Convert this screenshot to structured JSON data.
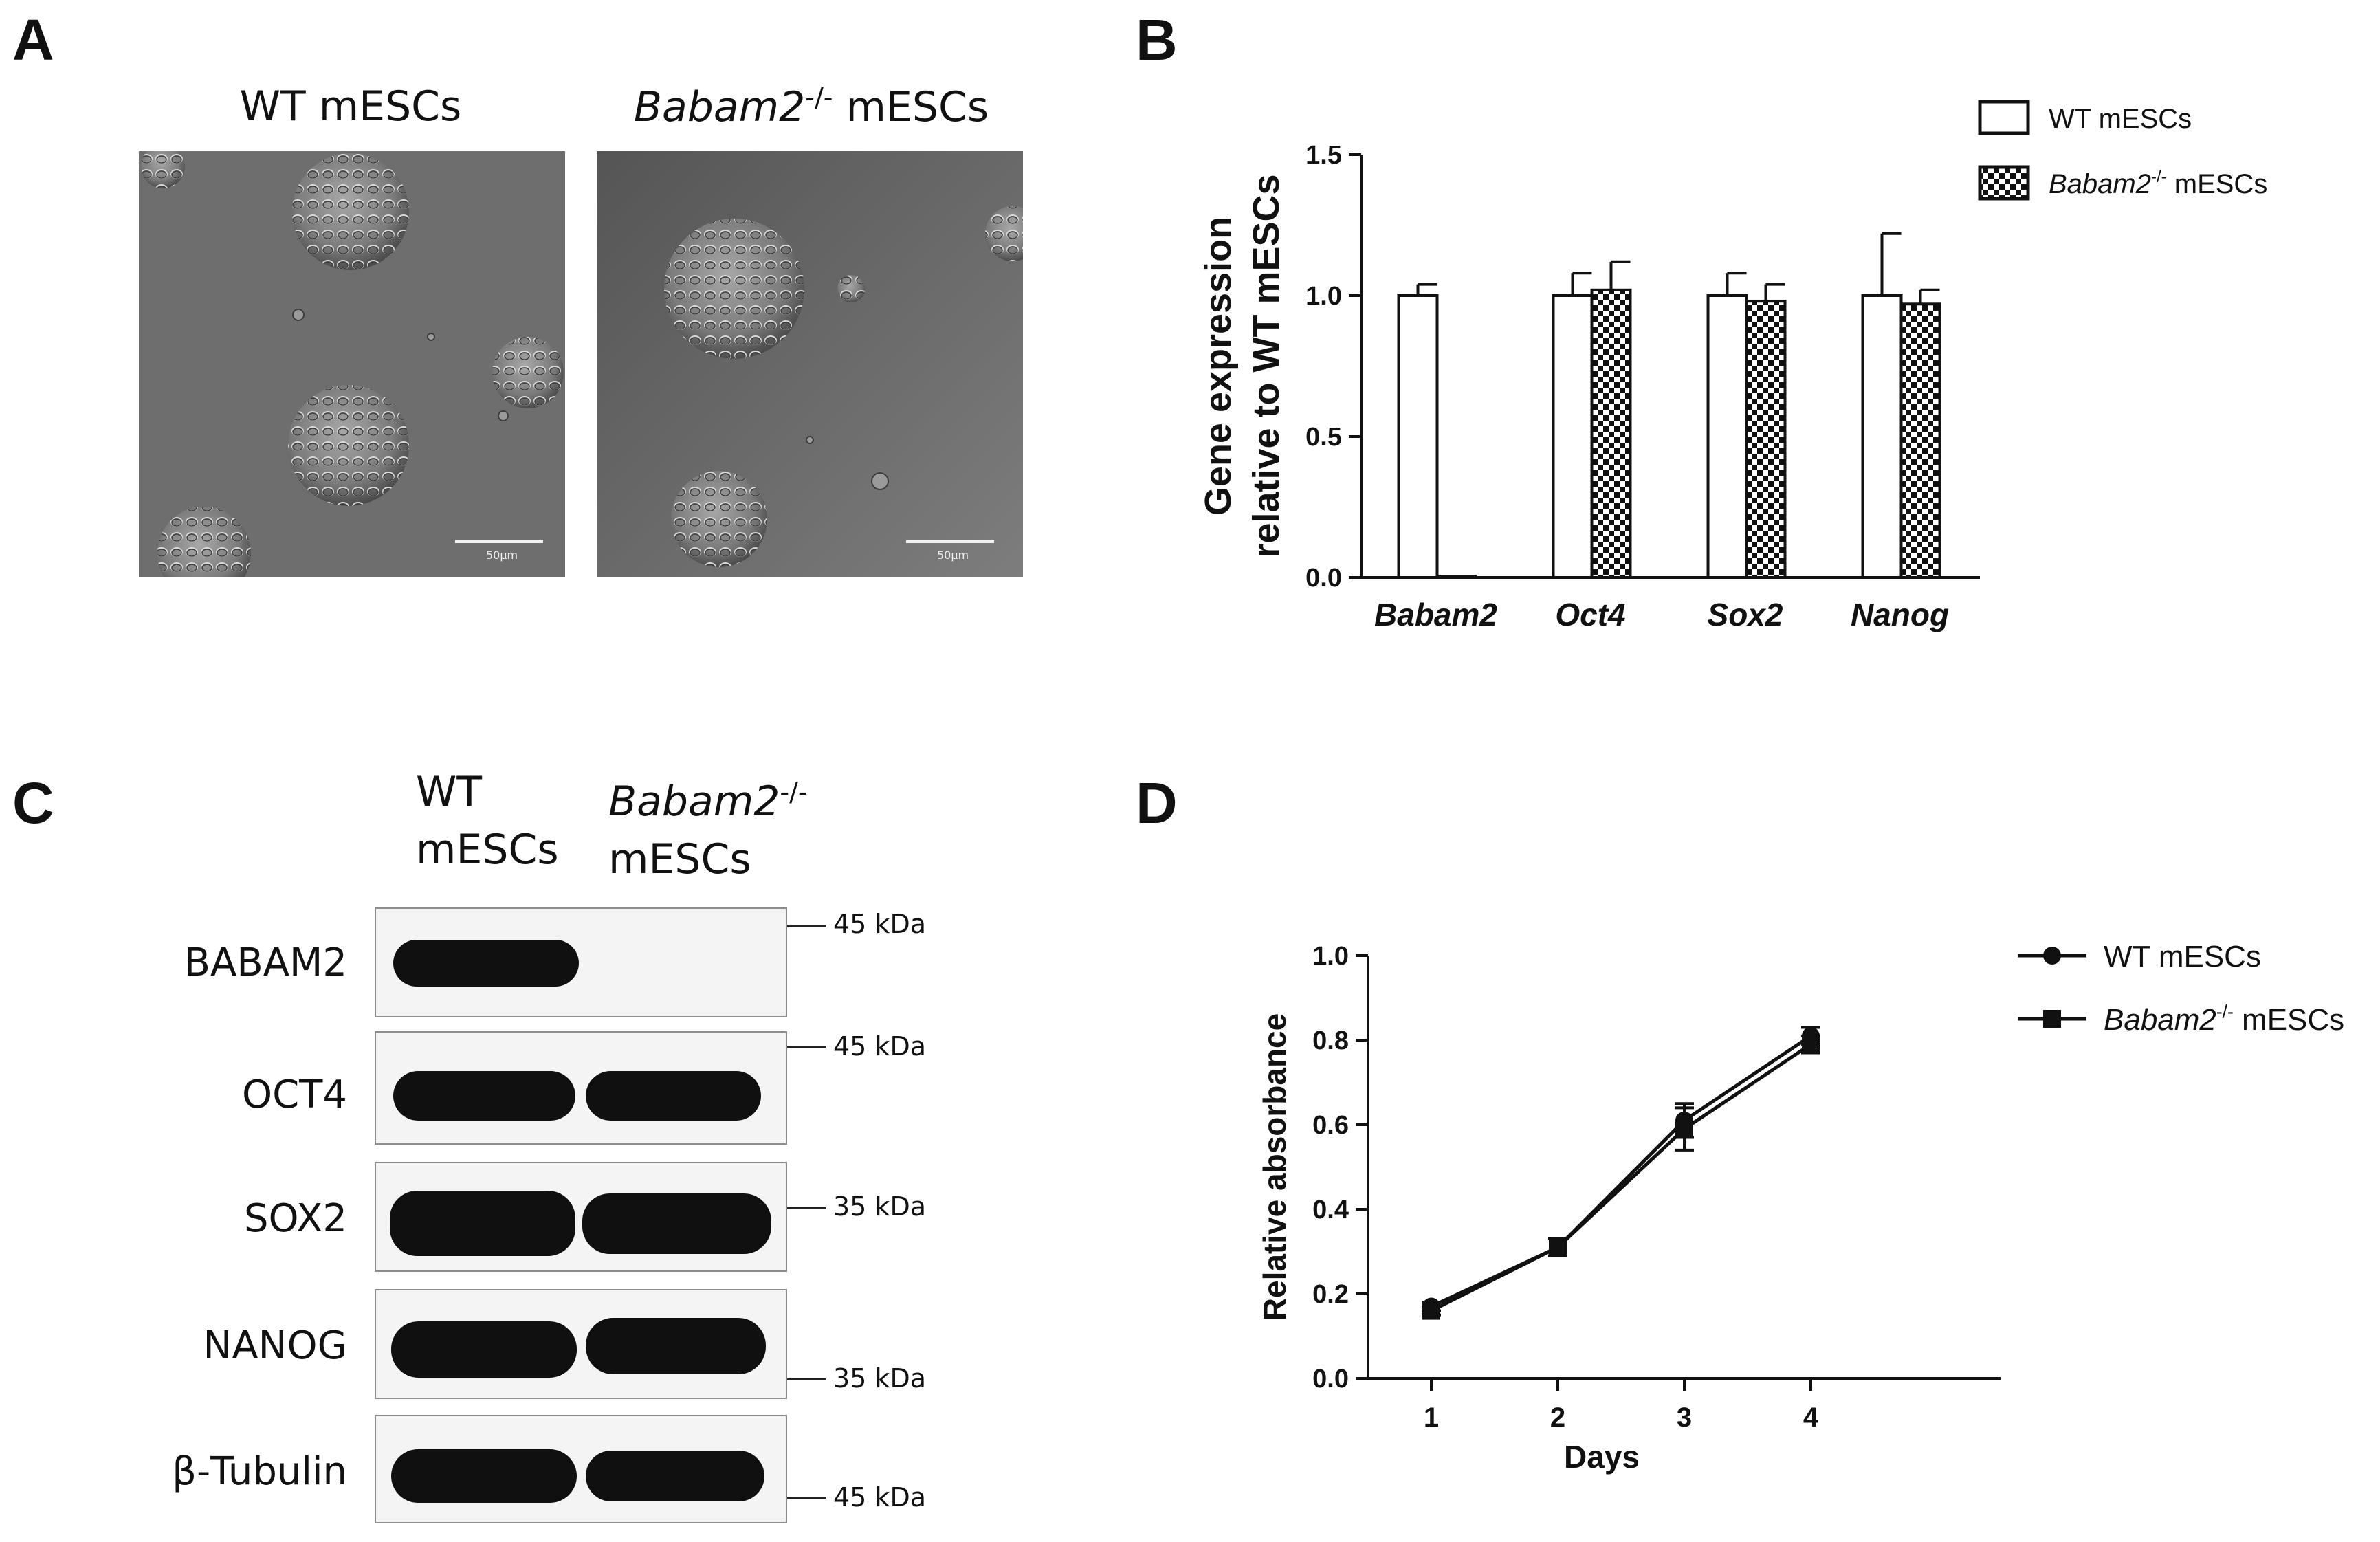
{
  "panels": {
    "A": {
      "label": "A",
      "images": [
        {
          "caption_main": "WT mESCs",
          "caption_italic": "",
          "caption_sup": "",
          "scalebar_text": "50μm"
        },
        {
          "caption_main": " mESCs",
          "caption_italic": "Babam2",
          "caption_sup": "-/-",
          "scalebar_text": "50μm"
        }
      ]
    },
    "B": {
      "label": "B"
    },
    "C": {
      "label": "C",
      "lane_headers": [
        {
          "line1": "WT",
          "line2": "mESCs",
          "italic": "",
          "sup": ""
        },
        {
          "line1": "",
          "line2": "mESCs",
          "italic": "Babam2",
          "sup": "-/-"
        }
      ],
      "blots": [
        {
          "protein": "BABAM2",
          "markers": [
            "45 kDa"
          ]
        },
        {
          "protein": "OCT4",
          "markers": [
            "45 kDa"
          ]
        },
        {
          "protein": "SOX2",
          "markers": [
            "35 kDa"
          ]
        },
        {
          "protein": "NANOG",
          "markers": [
            "35 kDa"
          ]
        },
        {
          "protein": "β-Tubulin",
          "markers": [
            "45 kDa"
          ]
        }
      ]
    },
    "D": {
      "label": "D"
    }
  },
  "chart_data": [
    {
      "panel": "B",
      "type": "bar",
      "categories": [
        "Babam2",
        "Oct4",
        "Sox2",
        "Nanog"
      ],
      "ylabel_line1": "Gene expression",
      "ylabel_line2": "relative to WT mESCs",
      "ylim": [
        0,
        1.5
      ],
      "yticks": [
        "0.0",
        "0.5",
        "1.0",
        "1.5"
      ],
      "legend_position": "top-right",
      "series": [
        {
          "name": "WT mESCs",
          "name_italic": "",
          "name_sup": "",
          "fill": "open",
          "values": [
            1.0,
            1.0,
            1.0,
            1.0
          ],
          "errors": [
            0.04,
            0.08,
            0.08,
            0.22
          ]
        },
        {
          "name": " mESCs",
          "name_italic": "Babam2",
          "name_sup": "-/-",
          "fill": "checkered",
          "values": [
            0.0,
            1.02,
            0.98,
            0.97
          ],
          "errors": [
            0.0,
            0.1,
            0.06,
            0.05
          ]
        }
      ]
    },
    {
      "panel": "D",
      "type": "line",
      "x": [
        1,
        2,
        3,
        4
      ],
      "xticks": [
        "1",
        "2",
        "3",
        "4"
      ],
      "xlabel": "Days",
      "ylabel": "Relative absorbance",
      "ylim": [
        0,
        1.0
      ],
      "xlim": [
        0.5,
        5.5
      ],
      "yticks": [
        "0.0",
        "0.2",
        "0.4",
        "0.6",
        "0.8",
        "1.0"
      ],
      "legend_position": "top-right",
      "series": [
        {
          "name": "WT mESCs",
          "name_italic": "",
          "name_sup": "",
          "marker": "circle",
          "values": [
            0.17,
            0.31,
            0.61,
            0.81
          ],
          "errors": [
            0.01,
            0.02,
            0.04,
            0.02
          ]
        },
        {
          "name": " mESCs",
          "name_italic": "Babam2",
          "name_sup": "-/-",
          "marker": "square",
          "values": [
            0.16,
            0.31,
            0.59,
            0.79
          ],
          "errors": [
            0.01,
            0.02,
            0.05,
            0.02
          ]
        }
      ]
    }
  ]
}
